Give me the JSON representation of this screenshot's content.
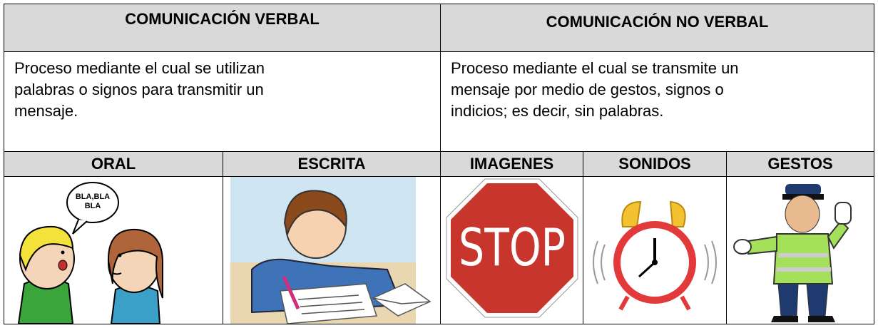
{
  "table": {
    "headers": [
      "COMUNICACIÓN VERBAL",
      "COMUNICACIÓN NO VERBAL"
    ],
    "descriptions": [
      [
        "Proceso mediante el cual se utilizan",
        "palabras o signos para transmitir un",
        "mensaje."
      ],
      [
        "Proceso mediante el cual se transmite un",
        "mensaje por medio de gestos, signos o",
        "indicios; es decir, sin palabras."
      ]
    ],
    "subheaders": [
      "ORAL",
      "ESCRITA",
      "IMAGENES",
      "SONIDOS",
      "GESTOS"
    ],
    "speech_bubble": [
      "BLA,BLA",
      "BLA"
    ],
    "stop_sign": "STOP"
  }
}
